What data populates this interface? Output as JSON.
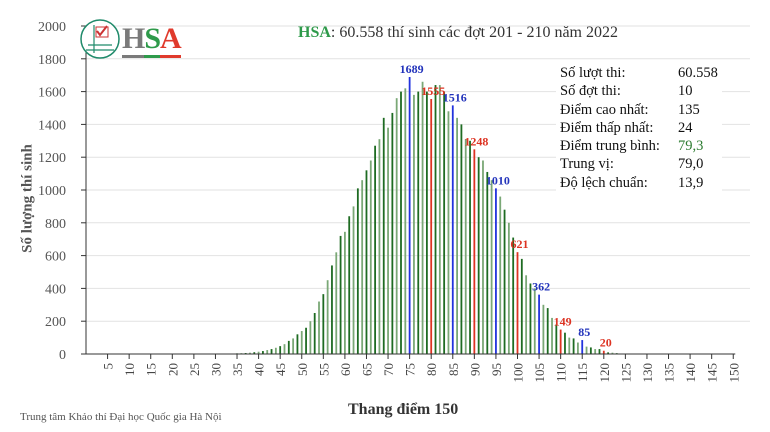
{
  "chart_data": {
    "type": "bar",
    "title_prefix": "HSA",
    "title": ": 60.558 thí sinh các đợt 201 - 210 năm 2022",
    "xlabel": "Thang điểm 150",
    "ylabel": "Số lượng thí sinh",
    "xlim": [
      0,
      150
    ],
    "ylim": [
      0,
      2000
    ],
    "x_ticks": [
      5,
      10,
      15,
      20,
      25,
      30,
      35,
      40,
      45,
      50,
      55,
      60,
      65,
      70,
      75,
      80,
      85,
      90,
      95,
      100,
      105,
      110,
      115,
      120,
      125,
      130,
      135,
      140,
      145,
      150
    ],
    "y_ticks": [
      0,
      200,
      400,
      600,
      800,
      1000,
      1200,
      1400,
      1600,
      1800,
      2000
    ],
    "grid": true,
    "x": [
      24,
      25,
      26,
      27,
      28,
      29,
      30,
      31,
      32,
      33,
      34,
      35,
      36,
      37,
      38,
      39,
      40,
      41,
      42,
      43,
      44,
      45,
      46,
      47,
      48,
      49,
      50,
      51,
      52,
      53,
      54,
      55,
      56,
      57,
      58,
      59,
      60,
      61,
      62,
      63,
      64,
      65,
      66,
      67,
      68,
      69,
      70,
      71,
      72,
      73,
      74,
      75,
      76,
      77,
      78,
      79,
      80,
      81,
      82,
      83,
      84,
      85,
      86,
      87,
      88,
      89,
      90,
      91,
      92,
      93,
      94,
      95,
      96,
      97,
      98,
      99,
      100,
      101,
      102,
      103,
      104,
      105,
      106,
      107,
      108,
      109,
      110,
      111,
      112,
      113,
      114,
      115,
      116,
      117,
      118,
      119,
      120,
      121,
      122,
      123,
      124,
      125,
      126,
      127,
      128,
      129,
      130,
      131,
      132,
      133,
      134,
      135
    ],
    "values": [
      1,
      0,
      1,
      0,
      1,
      1,
      1,
      2,
      2,
      3,
      3,
      4,
      5,
      6,
      8,
      11,
      14,
      18,
      24,
      30,
      38,
      48,
      60,
      80,
      95,
      120,
      140,
      160,
      200,
      250,
      320,
      365,
      450,
      540,
      620,
      720,
      745,
      840,
      900,
      1010,
      1060,
      1120,
      1180,
      1270,
      1310,
      1440,
      1380,
      1470,
      1560,
      1600,
      1620,
      1689,
      1580,
      1600,
      1660,
      1600,
      1555,
      1640,
      1640,
      1600,
      1480,
      1516,
      1440,
      1400,
      1310,
      1300,
      1248,
      1200,
      1180,
      1110,
      1060,
      1010,
      960,
      880,
      800,
      710,
      621,
      580,
      480,
      430,
      400,
      362,
      300,
      280,
      220,
      180,
      149,
      130,
      100,
      95,
      70,
      85,
      45,
      40,
      30,
      30,
      20,
      10,
      8,
      5,
      3,
      2,
      2,
      1,
      1,
      1,
      1,
      0,
      1,
      0,
      0,
      1
    ],
    "data_labels": [
      {
        "x": 75,
        "value": "1689",
        "color": "#2233bb"
      },
      {
        "x": 80,
        "value": "1555",
        "color": "#dd3322"
      },
      {
        "x": 85,
        "value": "1516",
        "color": "#2233bb"
      },
      {
        "x": 90,
        "value": "1248",
        "color": "#dd3322"
      },
      {
        "x": 95,
        "value": "1010",
        "color": "#2233bb"
      },
      {
        "x": 100,
        "value": "621",
        "color": "#dd3322"
      },
      {
        "x": 105,
        "value": "362",
        "color": "#2233bb"
      },
      {
        "x": 110,
        "value": "149",
        "color": "#dd3322"
      },
      {
        "x": 115,
        "value": "85",
        "color": "#2233bb"
      },
      {
        "x": 120,
        "value": "20",
        "color": "#dd3322"
      }
    ],
    "colors": {
      "bar_dark": "#1e6b22",
      "bar_light": "#7aa876",
      "blue": "#2233dd",
      "red": "#dd3322"
    }
  },
  "logo": {
    "text_h": "H",
    "text_s": "S",
    "text_a": "A"
  },
  "stats": [
    {
      "label": "Số lượt thi:",
      "value": "60.558"
    },
    {
      "label": "Số đợt thi:",
      "value": "10"
    },
    {
      "label": "Điểm cao nhất:",
      "value": "135"
    },
    {
      "label": "Điểm thấp nhất:",
      "value": "24"
    },
    {
      "label": "Điểm trung bình:",
      "value": "79,3",
      "color": "#2e7d32"
    },
    {
      "label": "Trung vị:",
      "value": "79,0"
    },
    {
      "label": "Độ lệch chuẩn:",
      "value": "13,9"
    }
  ],
  "footer": "Trung tâm Khảo thí Đại học Quốc gia Hà Nội"
}
